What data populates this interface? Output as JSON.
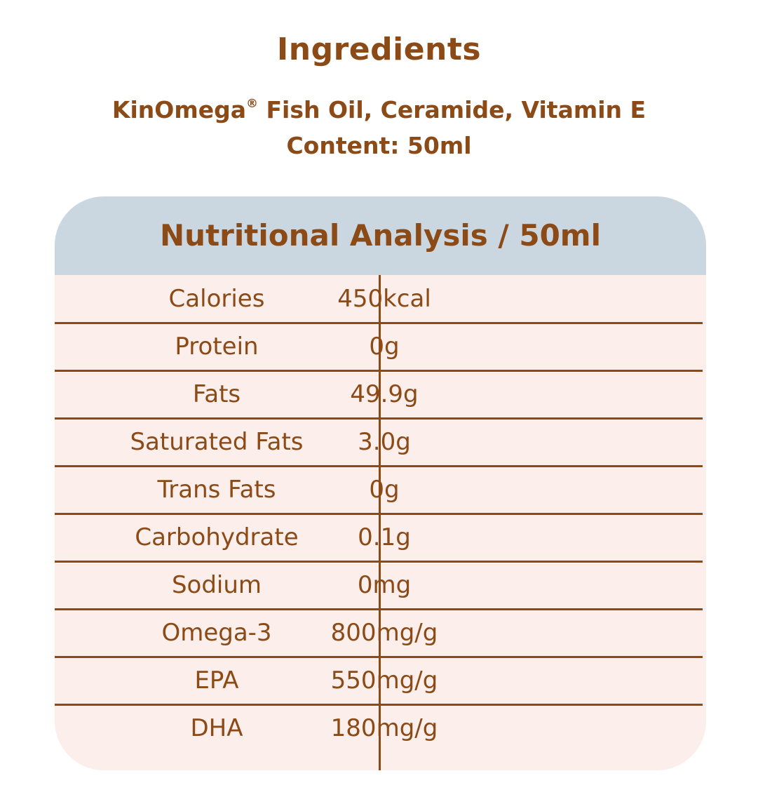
{
  "ingredients": {
    "title": "Ingredients",
    "line1_prefix": "KinOmega",
    "line1_mark": "®",
    "line1_suffix": " Fish Oil, Ceramide, Vitamin E",
    "line2": "Content: 50ml"
  },
  "table": {
    "title": "Nutritional Analysis / 50ml",
    "rows": [
      {
        "name": "Calories",
        "value": "450kcal"
      },
      {
        "name": "Protein",
        "value": "0g"
      },
      {
        "name": "Fats",
        "value": "49.9g"
      },
      {
        "name": "Saturated Fats",
        "value": "3.0g"
      },
      {
        "name": "Trans Fats",
        "value": "0g"
      },
      {
        "name": "Carbohydrate",
        "value": "0.1g"
      },
      {
        "name": "Sodium",
        "value": "0mg"
      },
      {
        "name": "Omega-3",
        "value": "800mg/g"
      },
      {
        "name": "EPA",
        "value": "550mg/g"
      },
      {
        "name": "DHA",
        "value": "180mg/g"
      }
    ]
  },
  "colors": {
    "text": "#8b4a16",
    "header_bg": "#cad7e1",
    "table_bg": "#fbeeeb"
  }
}
